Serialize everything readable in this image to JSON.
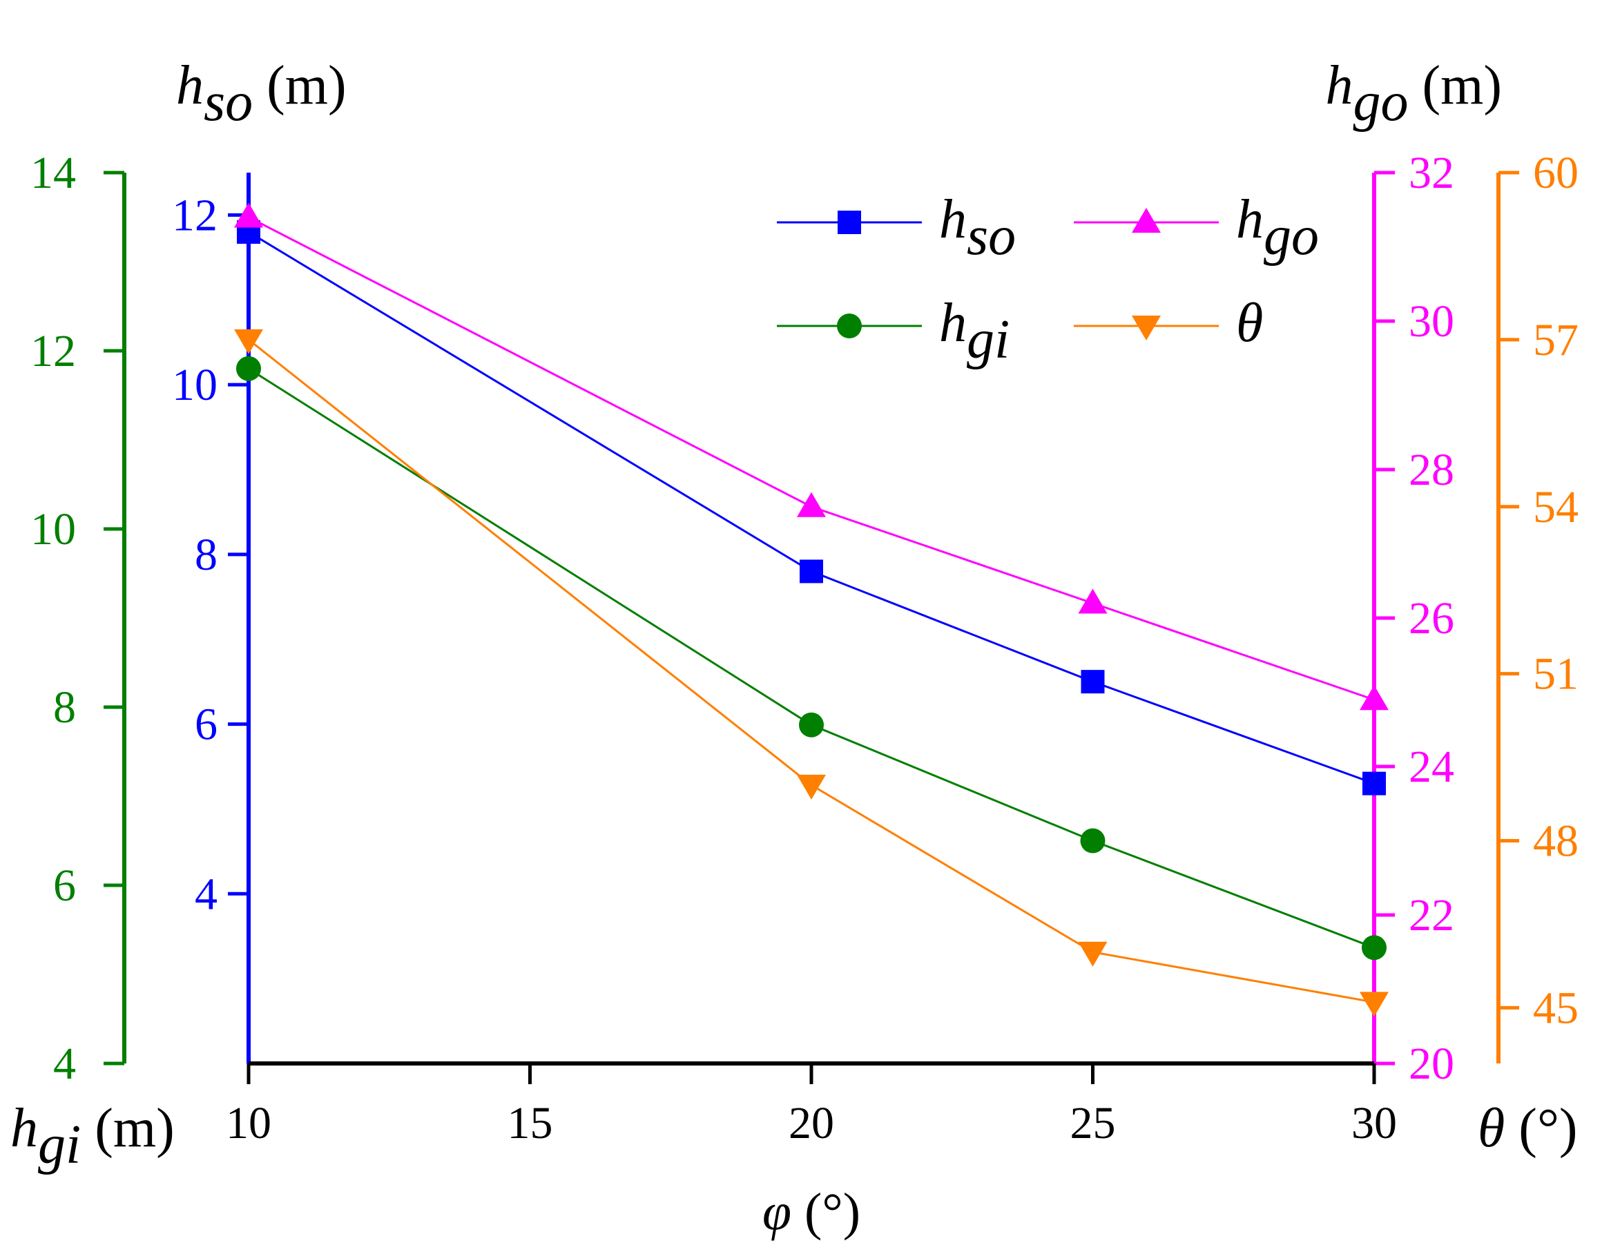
{
  "chart_data": {
    "type": "line",
    "x": [
      10,
      20,
      25,
      30
    ],
    "xlabel_symbol": "φ",
    "xlabel_unit": "(°)",
    "xlim": [
      10,
      30
    ],
    "xticks": [
      10,
      15,
      20,
      25,
      30
    ],
    "axes": {
      "hgi": {
        "symbol": "h",
        "sub": "gi",
        "unit": "(m)",
        "color": "#007f00",
        "ylim": [
          4,
          14
        ],
        "ticks": [
          4,
          6,
          8,
          10,
          12,
          14
        ]
      },
      "hso": {
        "symbol": "h",
        "sub": "so",
        "unit": "(m)",
        "color": "#0000ff",
        "ylim": [
          2,
          12.5
        ],
        "ticks": [
          4,
          6,
          8,
          10,
          12
        ]
      },
      "hgo": {
        "symbol": "h",
        "sub": "go",
        "unit": "(m)",
        "color": "#ff00ff",
        "ylim": [
          20,
          32
        ],
        "ticks": [
          20,
          22,
          24,
          26,
          28,
          30,
          32
        ]
      },
      "theta": {
        "symbol": "θ",
        "sub": "",
        "unit": "(°)",
        "color": "#ff7f00",
        "ylim": [
          44,
          60
        ],
        "ticks": [
          45,
          48,
          51,
          54,
          57,
          60
        ]
      }
    },
    "series": [
      {
        "name": "h",
        "sub": "so",
        "axis": "hso",
        "marker": "square",
        "color": "#0000ff",
        "values": [
          11.8,
          7.8,
          6.5,
          5.3
        ]
      },
      {
        "name": "h",
        "sub": "go",
        "axis": "hgo",
        "marker": "triangle-up",
        "color": "#ff00ff",
        "values": [
          31.4,
          27.5,
          26.2,
          24.9
        ]
      },
      {
        "name": "h",
        "sub": "gi",
        "axis": "hgi",
        "marker": "circle",
        "color": "#007f00",
        "values": [
          11.8,
          7.8,
          6.5,
          5.3
        ]
      },
      {
        "name": "θ",
        "sub": "",
        "axis": "theta",
        "marker": "triangle-down",
        "color": "#ff7f00",
        "values": [
          57.0,
          49.0,
          46.0,
          45.1
        ]
      }
    ]
  }
}
